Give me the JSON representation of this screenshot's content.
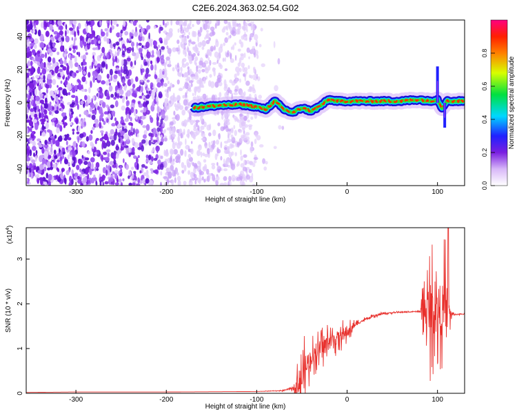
{
  "title": "C2E6.2024.363.02.54.G02",
  "colors": {
    "snr_line": "#e8302c",
    "axis": "#000000",
    "noise_purple": "#7a1fe0",
    "trace_core": "#ff2a00"
  },
  "chart_data": [
    {
      "type": "heatmap",
      "title": "C2E6.2024.363.02.54.G02",
      "xlabel": "Height of straight line (km)",
      "ylabel": "Frequency (Hz)",
      "xlim": [
        -355,
        130
      ],
      "ylim": [
        -50,
        50
      ],
      "xticks": [
        -300,
        -200,
        -100,
        0,
        100
      ],
      "yticks": [
        -40,
        -20,
        0,
        20,
        40
      ],
      "colorbar": {
        "label": "Normalized spectral amplitude",
        "range": [
          0,
          1
        ],
        "ticks": [
          "0.0",
          "0.2",
          "0.4",
          "0.6",
          "0.8"
        ],
        "colormap": "white-purple-blue-cyan-green-yellow-red-magenta"
      },
      "noise_region_x": [
        -355,
        -100
      ],
      "ridge": {
        "x": [
          -170,
          -160,
          -150,
          -140,
          -130,
          -120,
          -110,
          -100,
          -90,
          -80,
          -70,
          -60,
          -50,
          -40,
          -30,
          -20,
          -10,
          0,
          20,
          40,
          60,
          80,
          90,
          100,
          105,
          110,
          130
        ],
        "y": [
          -3,
          -2.5,
          -2,
          -1.5,
          -1.5,
          -1,
          -1.5,
          -2.5,
          -4,
          1,
          -4,
          -6,
          -3,
          -5,
          -2,
          2,
          1,
          1,
          1,
          1,
          1,
          2,
          1,
          2,
          -3,
          1,
          1
        ]
      },
      "spikes": [
        {
          "x": 100,
          "y_from": 0,
          "y_to": 22
        },
        {
          "x": 108,
          "y_from": 0,
          "y_to": -15
        }
      ]
    },
    {
      "type": "line",
      "xlabel": "Height of straight line (km)",
      "ylabel": "SNR (10 * v/v)",
      "yscale_label": "(x10",
      "yscale_exponent": "4",
      "xlim": [
        -355,
        130
      ],
      "ylim": [
        0,
        3.7
      ],
      "xticks": [
        -300,
        -200,
        -100,
        0,
        100
      ],
      "yticks": [
        0,
        1,
        2,
        3
      ],
      "series": [
        {
          "x": [
            -355,
            -300,
            -200,
            -100,
            -70,
            -60,
            -50,
            -45,
            -40,
            -30,
            -20,
            -10,
            0,
            10,
            20,
            30,
            40,
            50,
            60,
            70,
            80,
            90,
            100,
            105,
            110,
            115,
            120,
            130
          ],
          "y": [
            0.02,
            0.03,
            0.03,
            0.04,
            0.06,
            0.12,
            0.3,
            0.6,
            0.8,
            1.0,
            1.15,
            1.25,
            1.35,
            1.55,
            1.65,
            1.72,
            1.78,
            1.8,
            1.81,
            1.82,
            1.83,
            1.86,
            1.88,
            1.85,
            1.85,
            1.78,
            1.76,
            1.77
          ],
          "noise_amplitude": [
            0,
            0,
            0,
            0,
            0.02,
            0.08,
            0.9,
            1.0,
            0.5,
            0.5,
            0.5,
            0.4,
            0.3,
            0.1,
            0.06,
            0.05,
            0.04,
            0.03,
            0.03,
            0.03,
            0.04,
            1.6,
            1.6,
            1.6,
            1.8,
            0.2,
            0.03,
            0.03
          ],
          "peak": {
            "x": 112,
            "y": 3.7
          }
        }
      ]
    }
  ]
}
